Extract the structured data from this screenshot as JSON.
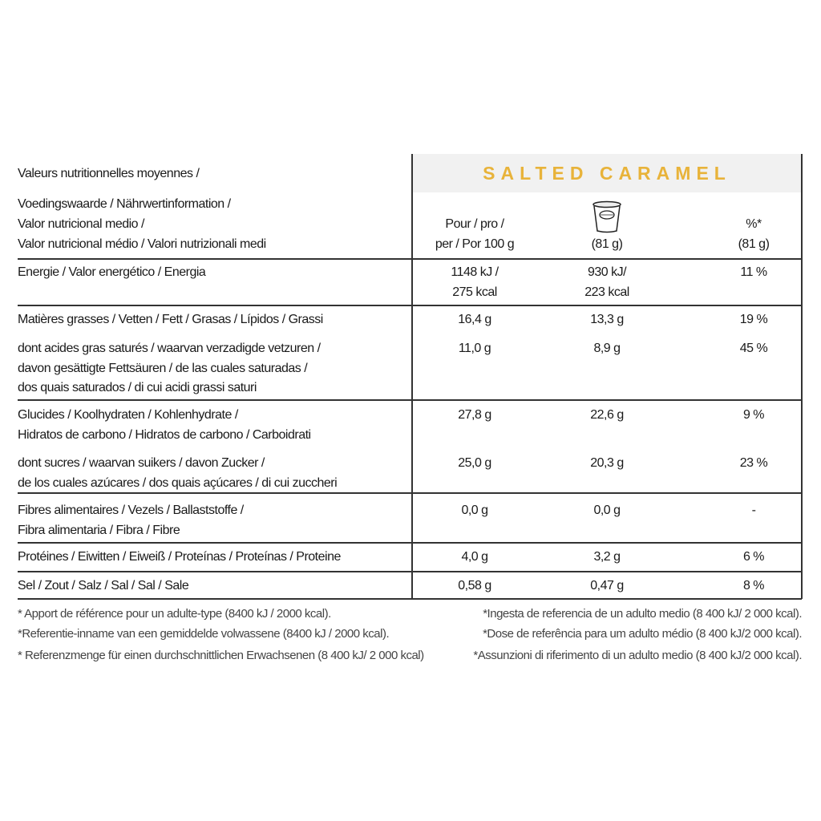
{
  "product": {
    "name": "SALTED CARAMEL",
    "color": "#E8B33A",
    "icon": "yogurt-cup-icon"
  },
  "header": {
    "label_lines": [
      "Valeurs nutritionnelles moyennes /",
      "Voedingswaarde / Nährwertinformation /",
      "Valor nutricional medio /",
      "Valor nutricional médio / Valori nutrizionali medi"
    ],
    "col1": [
      "Pour / pro /",
      "per / Por 100 g"
    ],
    "col2": [
      "(81 g)"
    ],
    "col3": [
      "%*",
      "(81 g)"
    ]
  },
  "rows": [
    {
      "label": [
        "Energie / Valor energético / Energia"
      ],
      "per100": [
        "1148 kJ /",
        "275 kcal"
      ],
      "portion": [
        "930 kJ/",
        "223 kcal"
      ],
      "ri": "11 %"
    },
    {
      "label": [
        "Matières grasses / Vetten / Fett / Grasas / Lípidos / Grassi"
      ],
      "per100": [
        "16,4 g"
      ],
      "portion": [
        "13,3 g"
      ],
      "ri": "19 %"
    },
    {
      "label": [
        "dont acides gras saturés / waarvan verzadigde vetzuren /",
        "davon gesättigte Fettsäuren / de las cuales saturadas /",
        "dos quais saturados / di cui acidi grassi saturi"
      ],
      "per100": [
        "11,0 g"
      ],
      "portion": [
        "8,9 g"
      ],
      "ri": "45 %"
    },
    {
      "label": [
        "Glucides / Koolhydraten / Kohlenhydrate /",
        "Hidratos de carbono / Hidratos de carbono / Carboidrati"
      ],
      "per100": [
        "27,8 g"
      ],
      "portion": [
        "22,6 g"
      ],
      "ri": "9 %"
    },
    {
      "label": [
        "dont sucres / waarvan suikers / davon Zucker /",
        "de los cuales azúcares  / dos quais açúcares / di cui zuccheri"
      ],
      "per100": [
        "25,0 g"
      ],
      "portion": [
        "20,3 g"
      ],
      "ri": "23 %"
    },
    {
      "label": [
        "Fibres alimentaires / Vezels / Ballaststoffe /",
        "Fibra alimentaria / Fibra / Fibre"
      ],
      "per100": [
        "0,0 g"
      ],
      "portion": [
        "0,0 g"
      ],
      "ri": "-"
    },
    {
      "label": [
        "Protéines / Eiwitten / Eiweiß / Proteínas / Proteínas / Proteine"
      ],
      "per100": [
        "4,0 g"
      ],
      "portion": [
        "3,2 g"
      ],
      "ri": "6 %"
    },
    {
      "label": [
        "Sel / Zout / Salz / Sal / Sal / Sale"
      ],
      "per100": [
        "0,58 g"
      ],
      "portion": [
        "0,47 g"
      ],
      "ri": "8 %"
    }
  ],
  "footnotes_left": [
    "* Apport de référence pour un adulte-type (8400 kJ / 2000 kcal).",
    "*Referentie-inname van een gemiddelde volwassene (8400 kJ / 2000 kcal).",
    "* Referenzmenge für einen durchschnittlichen Erwachsenen (8 400 kJ/ 2 000 kcal)"
  ],
  "footnotes_right": [
    "*Ingesta de referencia de un adulto medio (8 400 kJ/ 2 000 kcal).",
    "*Dose de referência para um adulto médio (8 400 kJ/2 000 kcal).",
    "*Assunzioni di riferimento di un adulto medio (8 400 kJ/2 000 kcal)."
  ]
}
